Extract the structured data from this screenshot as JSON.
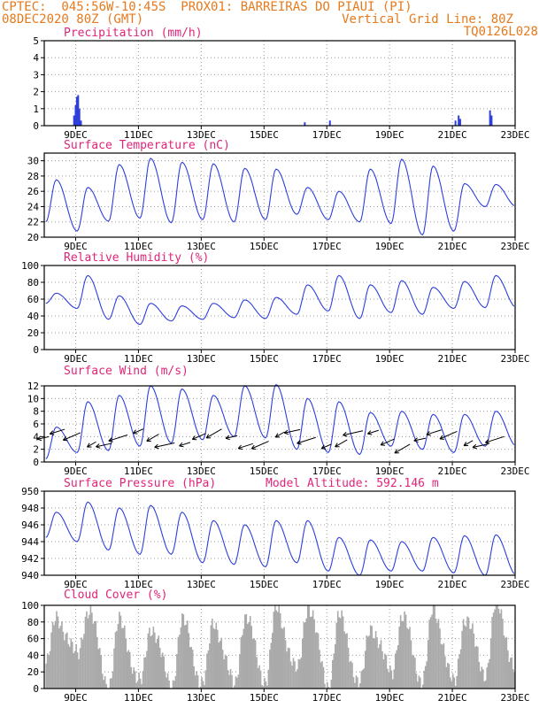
{
  "header": {
    "line1_left": "CPTEC:  045:56W-10:45S  PROX01: BARREIRAS DO PIAUI (PI)",
    "line2_left": "08DEC2020 80Z (GMT)",
    "line2_right": "Vertical Grid Line: 80Z",
    "line3_right": "TQ0126L028"
  },
  "colors": {
    "title": "#e0257a",
    "header": "#e67a1e",
    "line": "#2e3fdd",
    "cloud": "#aaaaaa",
    "grid": "#9a9a9a"
  },
  "chart_data": [
    {
      "type": "bar",
      "title": "Precipitation (mm/h)",
      "ylim": [
        0,
        5
      ],
      "yticks": [
        "0",
        "1",
        "2",
        "3",
        "4",
        "5"
      ],
      "xticks": [
        "9DEC",
        "11DEC",
        "13DEC",
        "15DEC",
        "17DEC",
        "19DEC",
        "21DEC",
        "23DEC"
      ],
      "events": [
        {
          "day": 8.95,
          "value": 0.6
        },
        {
          "day": 9.0,
          "value": 1.2
        },
        {
          "day": 9.04,
          "value": 1.7
        },
        {
          "day": 9.08,
          "value": 1.8
        },
        {
          "day": 9.12,
          "value": 1.0
        },
        {
          "day": 9.17,
          "value": 0.3
        },
        {
          "day": 16.3,
          "value": 0.2
        },
        {
          "day": 17.1,
          "value": 0.3
        },
        {
          "day": 21.1,
          "value": 0.3
        },
        {
          "day": 21.2,
          "value": 0.6
        },
        {
          "day": 21.25,
          "value": 0.4
        },
        {
          "day": 22.2,
          "value": 0.9
        },
        {
          "day": 22.25,
          "value": 0.6
        }
      ]
    },
    {
      "type": "line",
      "title": "Surface Temperature (nC)",
      "ylim": [
        20,
        31
      ],
      "yticks": [
        "20",
        "22",
        "24",
        "26",
        "28",
        "30"
      ],
      "xticks": [
        "9DEC",
        "11DEC",
        "13DEC",
        "15DEC",
        "17DEC",
        "19DEC",
        "21DEC",
        "23DEC"
      ],
      "daily_max": [
        27.5,
        26.5,
        29.5,
        30.3,
        29.8,
        29.6,
        29.0,
        28.9,
        26.5,
        26.0,
        28.9,
        30.2,
        29.3,
        27.0,
        26.9
      ],
      "daily_min": [
        22.0,
        20.8,
        22.1,
        22.5,
        21.9,
        22.3,
        22.0,
        22.3,
        23.0,
        22.3,
        22.0,
        21.8,
        20.3,
        20.8,
        24.0
      ]
    },
    {
      "type": "line",
      "title": "Relative Humidity (%)",
      "ylim": [
        0,
        100
      ],
      "yticks": [
        "0",
        "20",
        "40",
        "60",
        "80",
        "100"
      ],
      "xticks": [
        "9DEC",
        "11DEC",
        "13DEC",
        "15DEC",
        "17DEC",
        "19DEC",
        "21DEC",
        "23DEC"
      ],
      "daily_max": [
        67,
        88,
        64,
        55,
        52,
        55,
        59,
        62,
        77,
        88,
        77,
        82,
        74,
        81,
        88
      ],
      "daily_min": [
        55,
        49,
        36,
        30,
        34,
        36,
        38,
        37,
        42,
        46,
        37,
        44,
        42,
        49,
        50
      ]
    },
    {
      "type": "line",
      "title": "Surface Wind (m/s)",
      "ylim": [
        0,
        12
      ],
      "yticks": [
        "0",
        "2",
        "4",
        "6",
        "8",
        "10",
        "12"
      ],
      "xticks": [
        "9DEC",
        "11DEC",
        "13DEC",
        "15DEC",
        "17DEC",
        "19DEC",
        "21DEC",
        "23DEC"
      ],
      "daily_max": [
        5.5,
        9.5,
        10.5,
        12.0,
        11.5,
        10.5,
        12.0,
        12.2,
        10.0,
        9.5,
        7.8,
        8.0,
        7.5,
        7.5,
        8.0
      ],
      "daily_min": [
        0.5,
        1.5,
        1.8,
        2.5,
        3.0,
        3.5,
        4.0,
        3.8,
        2.0,
        1.5,
        1.2,
        2.5,
        2.0,
        1.5,
        2.5
      ]
    },
    {
      "type": "line",
      "title": "Surface Pressure (hPa)",
      "subtitle": "Model Altitude: 592.146 m",
      "ylim": [
        940,
        950
      ],
      "yticks": [
        "940",
        "942",
        "944",
        "946",
        "948",
        "950"
      ],
      "xticks": [
        "9DEC",
        "11DEC",
        "13DEC",
        "15DEC",
        "17DEC",
        "19DEC",
        "21DEC",
        "23DEC"
      ],
      "daily_max": [
        947.5,
        948.7,
        948.0,
        948.3,
        947.5,
        946.5,
        946.0,
        946.5,
        946.5,
        944.5,
        944.2,
        944.0,
        944.5,
        944.7,
        944.8
      ],
      "daily_min": [
        944.5,
        944.0,
        943.0,
        942.5,
        942.5,
        941.5,
        941.3,
        941.0,
        941.5,
        940.5,
        940.0,
        940.5,
        940.5,
        940.3,
        940.0
      ]
    },
    {
      "type": "bar",
      "title": "Cloud Cover (%)",
      "ylim": [
        0,
        100
      ],
      "yticks": [
        "0",
        "20",
        "40",
        "60",
        "80",
        "100"
      ],
      "xticks": [
        "9DEC",
        "11DEC",
        "13DEC",
        "15DEC",
        "17DEC",
        "19DEC",
        "21DEC",
        "23DEC"
      ],
      "daily_max": [
        85,
        95,
        80,
        75,
        80,
        80,
        85,
        95,
        100,
        85,
        75,
        85,
        95,
        85,
        100
      ],
      "daily_min": [
        30,
        40,
        5,
        5,
        5,
        5,
        5,
        10,
        20,
        5,
        5,
        20,
        10,
        5,
        20
      ]
    }
  ]
}
